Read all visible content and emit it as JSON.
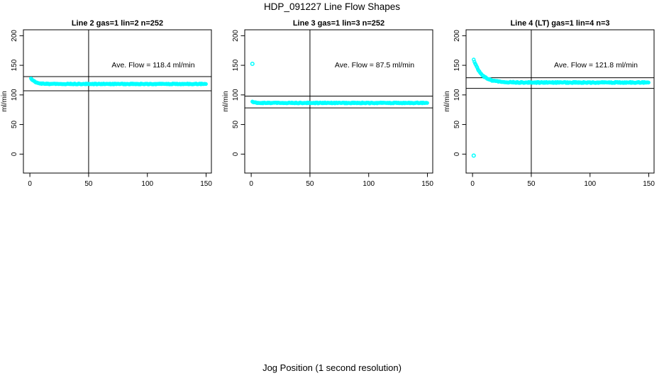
{
  "header": {
    "title": "HDP_091227  Line Flow Shapes"
  },
  "footer": {
    "xlabel": "Jog Position (1 second resolution)"
  },
  "style": {
    "point_color": "#00FFFF",
    "axis_color": "#000000",
    "background": "#ffffff"
  },
  "chart_data": [
    {
      "type": "scatter",
      "title": "Line 2 gas=1 lin=2 n=252",
      "ylabel": "ml/min",
      "xlim": [
        -5.5,
        154.5
      ],
      "ylim": [
        -32,
        210
      ],
      "xticks": [
        0,
        50,
        100,
        150
      ],
      "yticks": [
        0,
        50,
        100,
        150,
        200
      ],
      "vline_x": 50,
      "ref_lines": [
        131,
        107
      ],
      "ave_flow_ml_min": 118.4,
      "annotation": {
        "text": "Ave. Flow =  118.4  ml/min",
        "x": 105,
        "y": 150
      },
      "trace": {
        "x_start": 1,
        "x_end": 150,
        "step": 0.6,
        "start": 128,
        "settle": 118.5,
        "tau": 3.5,
        "jitter": 0.7
      },
      "outliers": []
    },
    {
      "type": "scatter",
      "title": "Line 3 gas=1 lin=3 n=252",
      "ylabel": "ml/min",
      "xlim": [
        -5.5,
        154.5
      ],
      "ylim": [
        -32,
        210
      ],
      "xticks": [
        0,
        50,
        100,
        150
      ],
      "yticks": [
        0,
        50,
        100,
        150,
        200
      ],
      "vline_x": 50,
      "ref_lines": [
        98,
        78
      ],
      "ave_flow_ml_min": 87.5,
      "annotation": {
        "text": "Ave. Flow =  87.5  ml/min",
        "x": 105,
        "y": 150
      },
      "trace": {
        "x_start": 1,
        "x_end": 150,
        "step": 0.6,
        "start": 89,
        "settle": 86.5,
        "tau": 1.5,
        "jitter": 0.7
      },
      "outliers": [
        [
          1,
          152.5
        ]
      ]
    },
    {
      "type": "scatter",
      "title": "Line 4 (LT) gas=1 lin=4 n=3",
      "ylabel": "ml/min",
      "xlim": [
        -5.5,
        154.5
      ],
      "ylim": [
        -32,
        210
      ],
      "xticks": [
        0,
        50,
        100,
        150
      ],
      "yticks": [
        0,
        50,
        100,
        150,
        200
      ],
      "vline_x": 50,
      "ref_lines": [
        129,
        111
      ],
      "ave_flow_ml_min": 121.8,
      "annotation": {
        "text": "Ave. Flow =  121.8  ml/min",
        "x": 105,
        "y": 150
      },
      "trace": {
        "x_start": 1,
        "x_end": 150,
        "step": 0.6,
        "start": 160,
        "settle": 121,
        "tau": 6.5,
        "jitter": 0.9
      },
      "outliers": [
        [
          1,
          -2.5
        ]
      ]
    }
  ]
}
